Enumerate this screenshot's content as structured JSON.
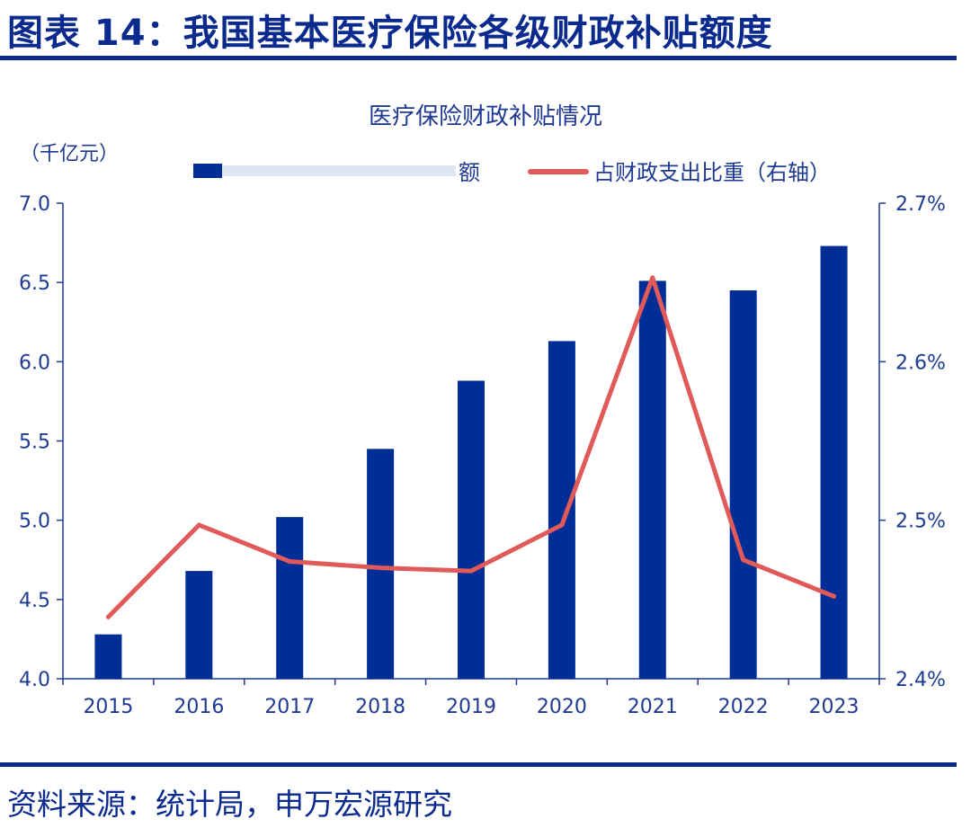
{
  "page": {
    "header": "图表 14：我国基本医疗保险各级财政补贴额度",
    "source": "资料来源：统计局，申万宏源研究"
  },
  "colors": {
    "bar": "#002d96",
    "line": "#e05a5a",
    "axis": "#1f3a93",
    "text": "#1f3a93"
  },
  "chart_data": {
    "type": "bar",
    "title": "医疗保险财政补贴情况",
    "ylabel": "（千亿元）",
    "categories": [
      "2015",
      "2016",
      "2017",
      "2018",
      "2019",
      "2020",
      "2021",
      "2022",
      "2023"
    ],
    "legend": {
      "bar_label": "额",
      "line_label": "占财政支出比重（右轴）",
      "placement": "top"
    },
    "series": [
      {
        "type": "bar",
        "axis": "left",
        "values": [
          4.28,
          4.68,
          5.02,
          5.45,
          5.88,
          6.13,
          6.51,
          6.45,
          6.73
        ]
      },
      {
        "type": "line",
        "axis": "right",
        "values": [
          2.439,
          2.497,
          2.474,
          2.47,
          2.468,
          2.497,
          2.653,
          2.475,
          2.452
        ]
      }
    ],
    "y_left": {
      "min": 4.0,
      "max": 7.0,
      "ticks": [
        "4.0",
        "4.5",
        "5.0",
        "5.5",
        "6.0",
        "6.5",
        "7.0"
      ]
    },
    "y_right": {
      "min": 2.4,
      "max": 2.7,
      "ticks": [
        "2.4%",
        "2.5%",
        "2.6%",
        "2.7%"
      ]
    },
    "grid": false
  }
}
